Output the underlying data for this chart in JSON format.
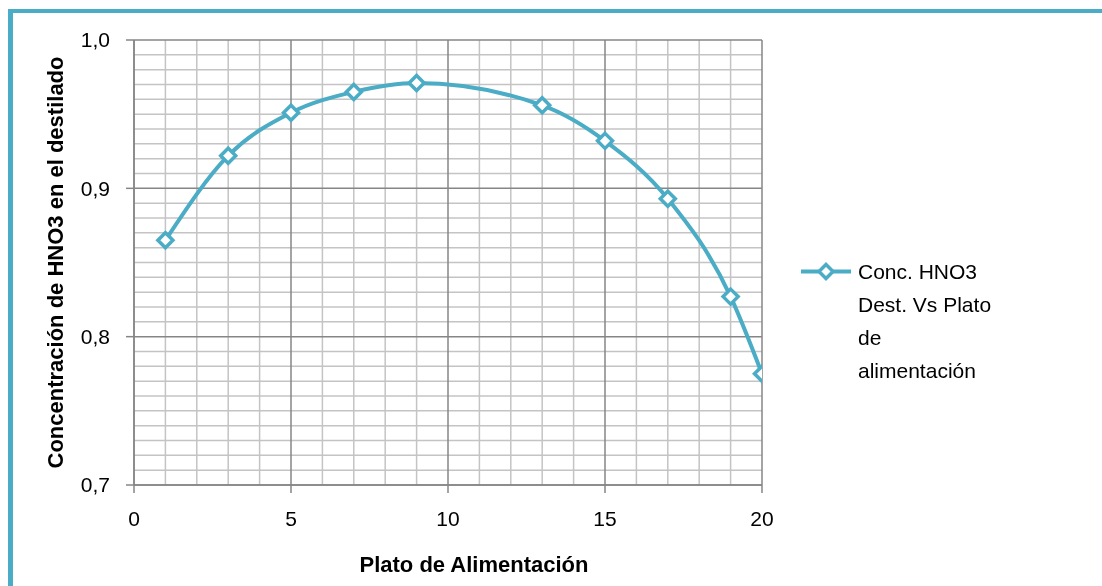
{
  "chart_data": {
    "type": "line",
    "xlabel": "Plato de Alimentación",
    "ylabel": "Concentración de HNO3 en el destilado",
    "x": [
      1,
      3,
      5,
      7,
      9,
      13,
      15,
      17,
      19,
      20
    ],
    "series": [
      {
        "name": "Conc. HNO3 Dest. Vs Plato de alimentación",
        "color": "#4bacc6",
        "values": [
          0.865,
          0.922,
          0.951,
          0.965,
          0.971,
          0.956,
          0.932,
          0.893,
          0.827,
          0.775
        ]
      }
    ],
    "xlim": [
      0,
      20
    ],
    "xticks": [
      0,
      {
        "value": 1,
        "label": null
      },
      {
        "value": 2,
        "label": null
      },
      {
        "value": 3,
        "label": null
      },
      {
        "value": 4,
        "label": null
      },
      5,
      {
        "value": 6,
        "label": null
      },
      {
        "value": 7,
        "label": null
      },
      {
        "value": 8,
        "label": null
      },
      {
        "value": 9,
        "label": null
      },
      10,
      {
        "value": 11,
        "label": null
      },
      {
        "value": 12,
        "label": null
      },
      {
        "value": 13,
        "label": null
      },
      {
        "value": 14,
        "label": null
      },
      15,
      {
        "value": 16,
        "label": null
      },
      {
        "value": 17,
        "label": null
      },
      {
        "value": 18,
        "label": null
      },
      {
        "value": 19,
        "label": null
      },
      20
    ],
    "ylim": [
      0.7,
      1.0
    ],
    "yticks": [
      {
        "value": 0.7,
        "label": "0,7"
      },
      {
        "value": 0.71,
        "label": null
      },
      {
        "value": 0.72,
        "label": null
      },
      {
        "value": 0.73,
        "label": null
      },
      {
        "value": 0.74,
        "label": null
      },
      {
        "value": 0.75,
        "label": null
      },
      {
        "value": 0.76,
        "label": null
      },
      {
        "value": 0.77,
        "label": null
      },
      {
        "value": 0.78,
        "label": null
      },
      {
        "value": 0.79,
        "label": null
      },
      {
        "value": 0.8,
        "label": "0,8"
      },
      {
        "value": 0.81,
        "label": null
      },
      {
        "value": 0.82,
        "label": null
      },
      {
        "value": 0.83,
        "label": null
      },
      {
        "value": 0.84,
        "label": null
      },
      {
        "value": 0.85,
        "label": null
      },
      {
        "value": 0.86,
        "label": null
      },
      {
        "value": 0.87,
        "label": null
      },
      {
        "value": 0.88,
        "label": null
      },
      {
        "value": 0.89,
        "label": null
      },
      {
        "value": 0.9,
        "label": "0,9"
      },
      {
        "value": 0.91,
        "label": null
      },
      {
        "value": 0.92,
        "label": null
      },
      {
        "value": 0.93,
        "label": null
      },
      {
        "value": 0.94,
        "label": null
      },
      {
        "value": 0.95,
        "label": null
      },
      {
        "value": 0.96,
        "label": null
      },
      {
        "value": 0.97,
        "label": null
      },
      {
        "value": 0.98,
        "label": null
      },
      {
        "value": 0.99,
        "label": null
      },
      {
        "value": 1.0,
        "label": "1,0"
      }
    ],
    "grid": true,
    "legend": "right",
    "marker": "diamond"
  }
}
